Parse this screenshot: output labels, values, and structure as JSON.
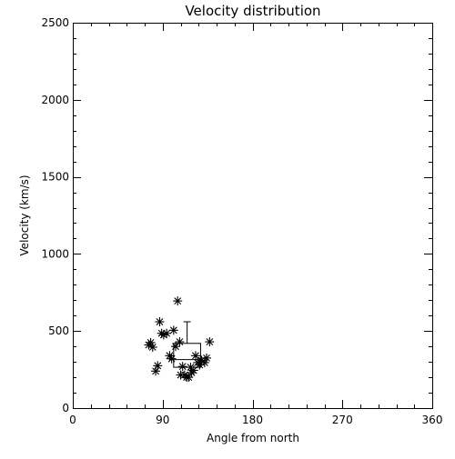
{
  "chart_data": {
    "type": "scatter",
    "title": "Velocity distribution",
    "xlabel": "Angle from north",
    "ylabel": "Velocity (km/s)",
    "xlim": [
      0,
      360
    ],
    "ylim": [
      0,
      2500
    ],
    "xticks": [
      0,
      90,
      180,
      270,
      360
    ],
    "yticks": [
      0,
      500,
      1000,
      1500,
      2000,
      2500
    ],
    "grid": false,
    "marker": "asterisk",
    "points": [
      {
        "x": 76,
        "y": 410
      },
      {
        "x": 78,
        "y": 425
      },
      {
        "x": 80,
        "y": 395
      },
      {
        "x": 83,
        "y": 240
      },
      {
        "x": 85,
        "y": 275
      },
      {
        "x": 87,
        "y": 560
      },
      {
        "x": 89,
        "y": 485
      },
      {
        "x": 91,
        "y": 475
      },
      {
        "x": 94,
        "y": 485
      },
      {
        "x": 97,
        "y": 340
      },
      {
        "x": 99,
        "y": 320
      },
      {
        "x": 101,
        "y": 505
      },
      {
        "x": 103,
        "y": 400
      },
      {
        "x": 105,
        "y": 695
      },
      {
        "x": 107,
        "y": 430
      },
      {
        "x": 108,
        "y": 215
      },
      {
        "x": 110,
        "y": 270
      },
      {
        "x": 112,
        "y": 215
      },
      {
        "x": 114,
        "y": 200
      },
      {
        "x": 116,
        "y": 200
      },
      {
        "x": 118,
        "y": 265
      },
      {
        "x": 119,
        "y": 230
      },
      {
        "x": 121,
        "y": 245
      },
      {
        "x": 123,
        "y": 340
      },
      {
        "x": 125,
        "y": 295
      },
      {
        "x": 127,
        "y": 280
      },
      {
        "x": 129,
        "y": 310
      },
      {
        "x": 132,
        "y": 295
      },
      {
        "x": 134,
        "y": 325
      },
      {
        "x": 137,
        "y": 430
      }
    ],
    "box_summary": {
      "x_range": [
        101,
        128
      ],
      "q1": 265,
      "median": 315,
      "q3": 420,
      "whisker_high": 560
    }
  }
}
